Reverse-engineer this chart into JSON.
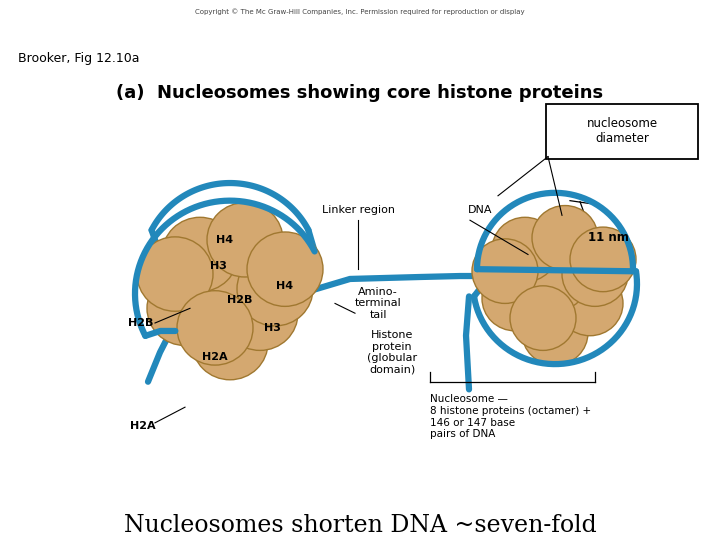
{
  "title": "Nucleosomes shorten DNA ~seven-fold",
  "subtitle": "(a)  Nucleosomes showing core histone proteins",
  "citation": "Brooker, Fig 12.10a",
  "copyright": "Copyright © The Mc Graw-Hill Companies, Inc. Permission required for reproduction or display",
  "nucleosome_color": "#D4A870",
  "nucleosome_edge_color": "#A07830",
  "dna_color": "#2288BB",
  "dna_linewidth": 4.5,
  "labels": {
    "H2A_outer": "H2A",
    "H2A_inner": "H2A",
    "H2B_inner": "H2B",
    "H3_upper": "H3",
    "H3_lower": "H3",
    "H4_upper": "H4",
    "H4_lower": "H4",
    "H2B_outer": "H2B",
    "linker_region": "Linker region",
    "DNA": "DNA",
    "amino_terminal": "Amino-\nterminal\ntail",
    "histone_protein": "Histone\nprotein\n(globular\ndomain)",
    "nucleosome_desc": "Nucleosome —\n8 histone proteins (octamer) +\n146 or 147 base\npairs of DNA",
    "nucleosome_diameter": "nucleosome\ndiameter",
    "11nm": "11 nm"
  },
  "background_color": "#FFFFFF",
  "title_fontsize": 17,
  "label_fontsize": 8,
  "subtitle_fontsize": 13
}
